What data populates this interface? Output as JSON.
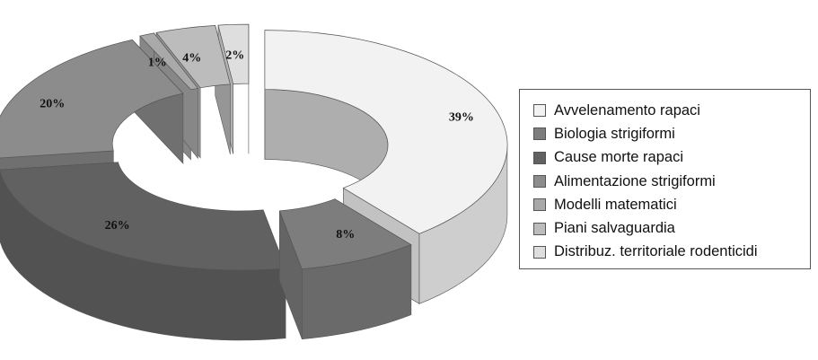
{
  "chart_data": {
    "type": "pie",
    "style": "3d-exploded-doughnut",
    "categories": [
      "Avvelenamento rapaci",
      "Biologia strigiformi",
      "Cause morte rapaci",
      "Alimentazione strigiformi",
      "Modelli matematici",
      "Piani salvaguardia",
      "Distribuz. territoriale rodenticidi"
    ],
    "values": [
      39,
      8,
      26,
      20,
      1,
      4,
      2
    ],
    "data_labels": [
      "39%",
      "8%",
      "26%",
      "20%",
      "1%",
      "4%",
      "2%"
    ],
    "colors": [
      "#f2f2f2",
      "#7d7d7d",
      "#616161",
      "#8c8c8c",
      "#a9a9a9",
      "#bcbcbc",
      "#dedede"
    ],
    "legend_position": "right"
  }
}
